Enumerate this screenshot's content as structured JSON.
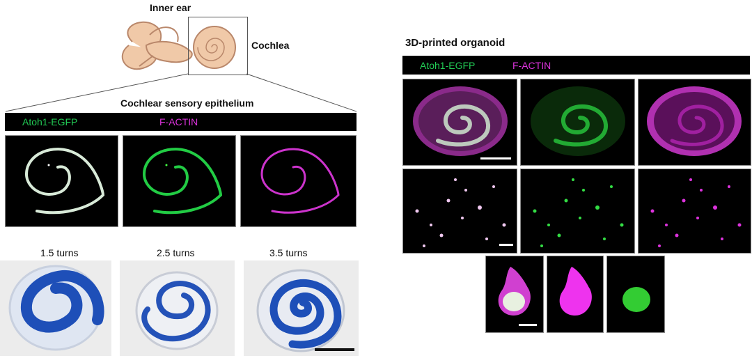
{
  "labels": {
    "inner_ear": "Inner ear",
    "cochlea": "Cochlea",
    "epithelium_title": "Cochlear sensory epithelium",
    "atoh1": "Atoh1-EGFP",
    "factin": "F-ACTIN",
    "organoid_title": "3D-printed organoid",
    "turns": [
      "1.5 turns",
      "2.5 turns",
      "3.5 turns"
    ]
  },
  "colors": {
    "atoh1": "#22cc55",
    "factin": "#dd33dd",
    "merge": "#e6f2e6",
    "dye": "#1e4fb8",
    "ear": "#f0c9a8"
  }
}
